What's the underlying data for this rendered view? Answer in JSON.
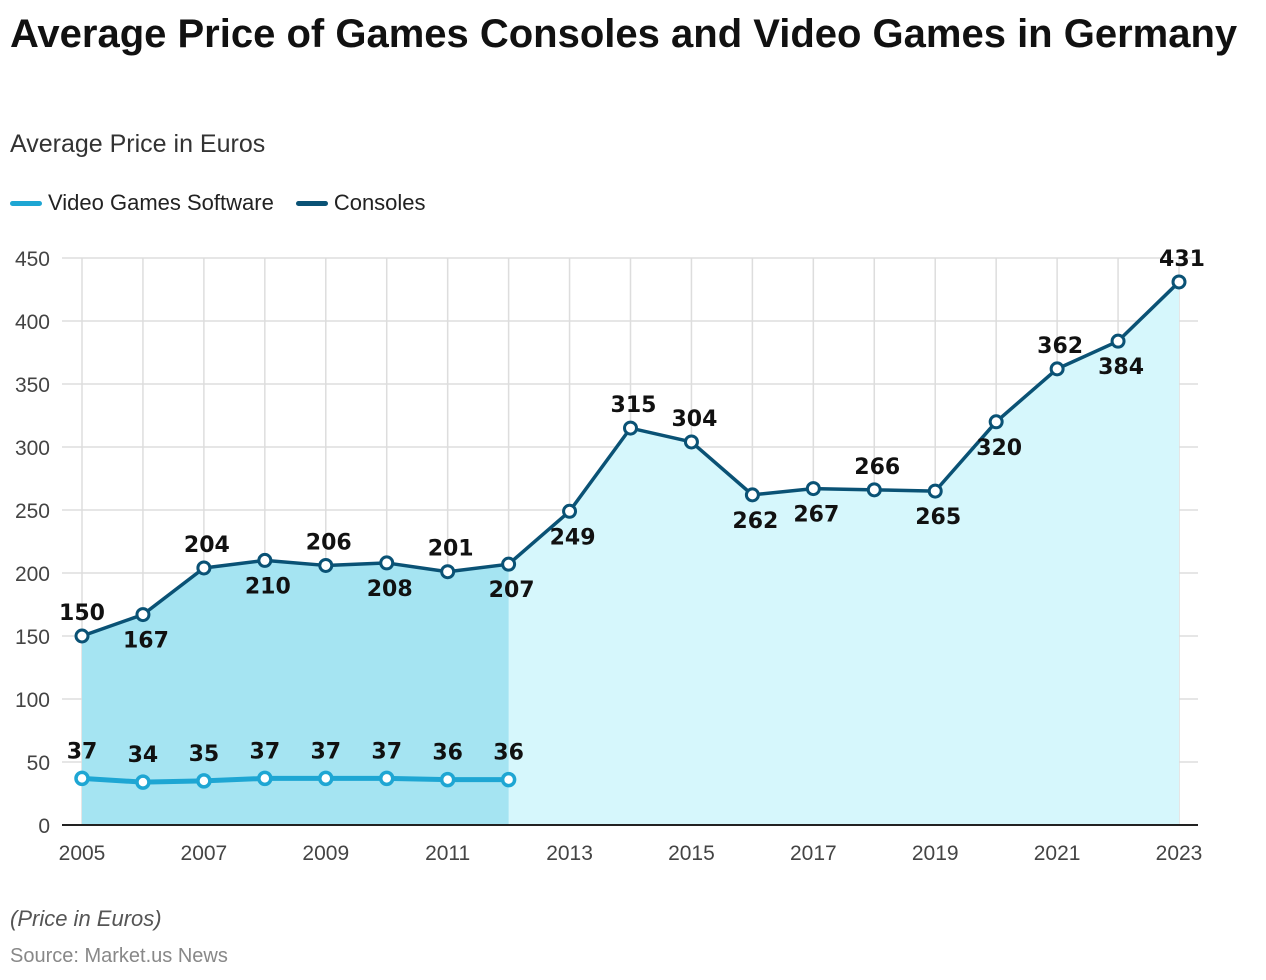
{
  "title": "Average Price of Games Consoles and Video Games in Germany",
  "subtitle": "Average Price in Euros",
  "note": "(Price in Euros)",
  "source": "Source: Market.us News",
  "legend": [
    {
      "label": "Video Games Software",
      "color": "#1ea6d3"
    },
    {
      "label": "Consoles",
      "color": "#0a5275"
    }
  ],
  "colors": {
    "software_line": "#1ea6d3",
    "consoles_line": "#0a5275",
    "consoles_fill": "#d6f7fc",
    "software_fill": "#a5e4f2",
    "grid": "#dddddd"
  },
  "chart_data": {
    "type": "area",
    "x": [
      2005,
      2006,
      2007,
      2008,
      2009,
      2010,
      2011,
      2012,
      2013,
      2014,
      2015,
      2016,
      2017,
      2018,
      2019,
      2020,
      2021,
      2022,
      2023
    ],
    "x_tick_labels": [
      "2005",
      "2007",
      "2009",
      "2011",
      "2013",
      "2015",
      "2017",
      "2019",
      "2021",
      "2023"
    ],
    "y_tick_labels": [
      "0",
      "50",
      "100",
      "150",
      "200",
      "250",
      "300",
      "350",
      "400",
      "450"
    ],
    "ylim": [
      0,
      450
    ],
    "grid": true,
    "legend_position": "top-left",
    "series": [
      {
        "name": "Video Games Software",
        "values": [
          37,
          34,
          35,
          37,
          37,
          37,
          36,
          36,
          null,
          null,
          null,
          null,
          null,
          null,
          null,
          null,
          null,
          null,
          null
        ]
      },
      {
        "name": "Consoles",
        "values": [
          150,
          167,
          204,
          210,
          206,
          208,
          201,
          207,
          249,
          315,
          304,
          262,
          267,
          266,
          265,
          320,
          362,
          384,
          431
        ]
      }
    ],
    "consoles_label_side": [
      "above",
      "below",
      "above",
      "below",
      "above",
      "below",
      "above",
      "below",
      "below",
      "above",
      "above",
      "below",
      "below",
      "above",
      "below",
      "below",
      "above",
      "below",
      "above"
    ]
  }
}
